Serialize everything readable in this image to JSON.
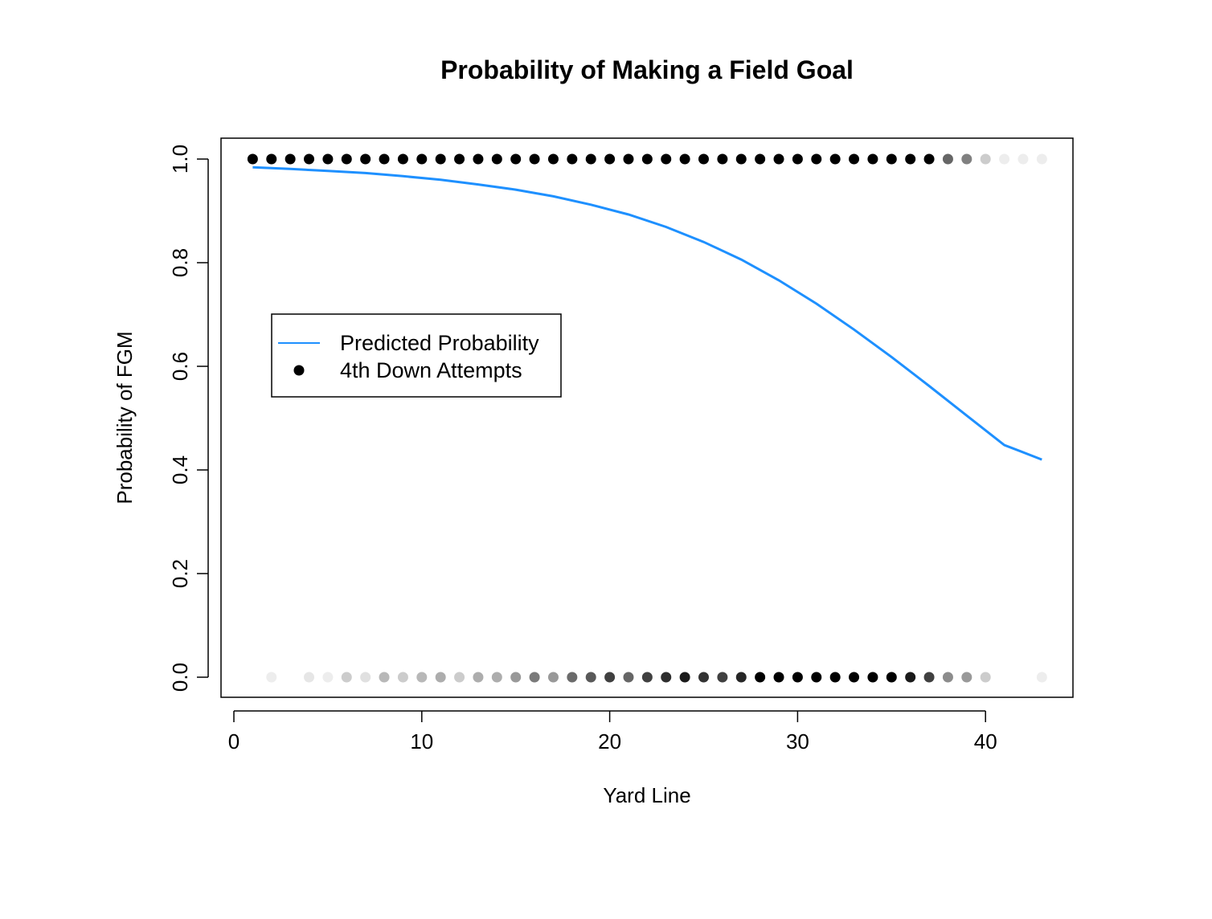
{
  "chart_data": {
    "type": "scatter",
    "title": "Probability of Making a Field Goal",
    "xlabel": "Yard Line",
    "ylabel": "Probability of FGM",
    "xlim": [
      0,
      45
    ],
    "ylim": [
      0,
      1
    ],
    "x_ticks": [
      0,
      10,
      20,
      30,
      40
    ],
    "y_ticks": [
      0.0,
      0.2,
      0.4,
      0.6,
      0.8,
      1.0
    ],
    "x_tick_labels": [
      "0",
      "10",
      "20",
      "30",
      "40"
    ],
    "y_tick_labels": [
      "0.0",
      "0.2",
      "0.4",
      "0.6",
      "0.8",
      "1.0"
    ],
    "grid": false,
    "legend": {
      "position": "center-left",
      "entries": [
        {
          "label": "Predicted Probability",
          "kind": "line",
          "color": "#1E90FF"
        },
        {
          "label": "4th Down Attempts",
          "kind": "point",
          "color": "#000000"
        }
      ]
    },
    "series": [
      {
        "name": "Predicted Probability",
        "kind": "line",
        "color": "#1E90FF",
        "x": [
          1,
          3,
          5,
          7,
          9,
          11,
          13,
          15,
          17,
          19,
          21,
          23,
          25,
          27,
          29,
          31,
          33,
          35,
          37,
          39,
          41,
          43
        ],
        "y": [
          0.984,
          0.981,
          0.977,
          0.973,
          0.967,
          0.96,
          0.951,
          0.941,
          0.928,
          0.912,
          0.893,
          0.869,
          0.84,
          0.806,
          0.766,
          0.721,
          0.671,
          0.618,
          0.562,
          0.505,
          0.448,
          0.42
        ]
      },
      {
        "name": "4th Down Attempts",
        "kind": "point",
        "color": "#000000",
        "points": [
          {
            "x": 1,
            "y": 1,
            "shade": 0
          },
          {
            "x": 2,
            "y": 1,
            "shade": 0
          },
          {
            "x": 3,
            "y": 1,
            "shade": 0
          },
          {
            "x": 4,
            "y": 1,
            "shade": 0
          },
          {
            "x": 5,
            "y": 1,
            "shade": 0
          },
          {
            "x": 6,
            "y": 1,
            "shade": 0
          },
          {
            "x": 7,
            "y": 1,
            "shade": 0
          },
          {
            "x": 8,
            "y": 1,
            "shade": 0
          },
          {
            "x": 9,
            "y": 1,
            "shade": 0
          },
          {
            "x": 10,
            "y": 1,
            "shade": 0
          },
          {
            "x": 11,
            "y": 1,
            "shade": 0
          },
          {
            "x": 12,
            "y": 1,
            "shade": 0
          },
          {
            "x": 13,
            "y": 1,
            "shade": 0
          },
          {
            "x": 14,
            "y": 1,
            "shade": 0
          },
          {
            "x": 15,
            "y": 1,
            "shade": 0
          },
          {
            "x": 16,
            "y": 1,
            "shade": 0
          },
          {
            "x": 17,
            "y": 1,
            "shade": 0
          },
          {
            "x": 18,
            "y": 1,
            "shade": 0
          },
          {
            "x": 19,
            "y": 1,
            "shade": 0
          },
          {
            "x": 20,
            "y": 1,
            "shade": 0
          },
          {
            "x": 21,
            "y": 1,
            "shade": 0
          },
          {
            "x": 22,
            "y": 1,
            "shade": 0
          },
          {
            "x": 23,
            "y": 1,
            "shade": 0
          },
          {
            "x": 24,
            "y": 1,
            "shade": 0
          },
          {
            "x": 25,
            "y": 1,
            "shade": 0
          },
          {
            "x": 26,
            "y": 1,
            "shade": 0
          },
          {
            "x": 27,
            "y": 1,
            "shade": 0
          },
          {
            "x": 28,
            "y": 1,
            "shade": 0
          },
          {
            "x": 29,
            "y": 1,
            "shade": 0
          },
          {
            "x": 30,
            "y": 1,
            "shade": 0
          },
          {
            "x": 31,
            "y": 1,
            "shade": 0
          },
          {
            "x": 32,
            "y": 1,
            "shade": 0
          },
          {
            "x": 33,
            "y": 1,
            "shade": 0
          },
          {
            "x": 34,
            "y": 1,
            "shade": 0
          },
          {
            "x": 35,
            "y": 1,
            "shade": 0
          },
          {
            "x": 36,
            "y": 1,
            "shade": 0
          },
          {
            "x": 37,
            "y": 1,
            "shade": 0
          },
          {
            "x": 38,
            "y": 1,
            "shade": 0.4
          },
          {
            "x": 39,
            "y": 1,
            "shade": 0.5
          },
          {
            "x": 40,
            "y": 1,
            "shade": 0.8
          },
          {
            "x": 41,
            "y": 1,
            "shade": 0.93
          },
          {
            "x": 42,
            "y": 1,
            "shade": 0.93
          },
          {
            "x": 43,
            "y": 1,
            "shade": 0.93
          },
          {
            "x": 2,
            "y": 0,
            "shade": 0.93
          },
          {
            "x": 4,
            "y": 0,
            "shade": 0.9
          },
          {
            "x": 5,
            "y": 0,
            "shade": 0.93
          },
          {
            "x": 6,
            "y": 0,
            "shade": 0.8
          },
          {
            "x": 7,
            "y": 0,
            "shade": 0.88
          },
          {
            "x": 8,
            "y": 0,
            "shade": 0.72
          },
          {
            "x": 9,
            "y": 0,
            "shade": 0.8
          },
          {
            "x": 10,
            "y": 0,
            "shade": 0.72
          },
          {
            "x": 11,
            "y": 0,
            "shade": 0.68
          },
          {
            "x": 12,
            "y": 0,
            "shade": 0.8
          },
          {
            "x": 13,
            "y": 0,
            "shade": 0.68
          },
          {
            "x": 14,
            "y": 0,
            "shade": 0.68
          },
          {
            "x": 15,
            "y": 0,
            "shade": 0.6
          },
          {
            "x": 16,
            "y": 0,
            "shade": 0.48
          },
          {
            "x": 17,
            "y": 0,
            "shade": 0.6
          },
          {
            "x": 18,
            "y": 0,
            "shade": 0.42
          },
          {
            "x": 19,
            "y": 0,
            "shade": 0.35
          },
          {
            "x": 20,
            "y": 0,
            "shade": 0.25
          },
          {
            "x": 21,
            "y": 0,
            "shade": 0.4
          },
          {
            "x": 22,
            "y": 0,
            "shade": 0.25
          },
          {
            "x": 23,
            "y": 0,
            "shade": 0.18
          },
          {
            "x": 24,
            "y": 0,
            "shade": 0.1
          },
          {
            "x": 25,
            "y": 0,
            "shade": 0.2
          },
          {
            "x": 26,
            "y": 0,
            "shade": 0.25
          },
          {
            "x": 27,
            "y": 0,
            "shade": 0.15
          },
          {
            "x": 28,
            "y": 0,
            "shade": 0
          },
          {
            "x": 29,
            "y": 0,
            "shade": 0
          },
          {
            "x": 30,
            "y": 0,
            "shade": 0
          },
          {
            "x": 31,
            "y": 0,
            "shade": 0
          },
          {
            "x": 32,
            "y": 0,
            "shade": 0
          },
          {
            "x": 33,
            "y": 0,
            "shade": 0
          },
          {
            "x": 34,
            "y": 0,
            "shade": 0
          },
          {
            "x": 35,
            "y": 0,
            "shade": 0
          },
          {
            "x": 36,
            "y": 0,
            "shade": 0.1
          },
          {
            "x": 37,
            "y": 0,
            "shade": 0.25
          },
          {
            "x": 38,
            "y": 0,
            "shade": 0.55
          },
          {
            "x": 39,
            "y": 0,
            "shade": 0.6
          },
          {
            "x": 40,
            "y": 0,
            "shade": 0.8
          },
          {
            "x": 43,
            "y": 0,
            "shade": 0.93
          }
        ]
      }
    ]
  }
}
